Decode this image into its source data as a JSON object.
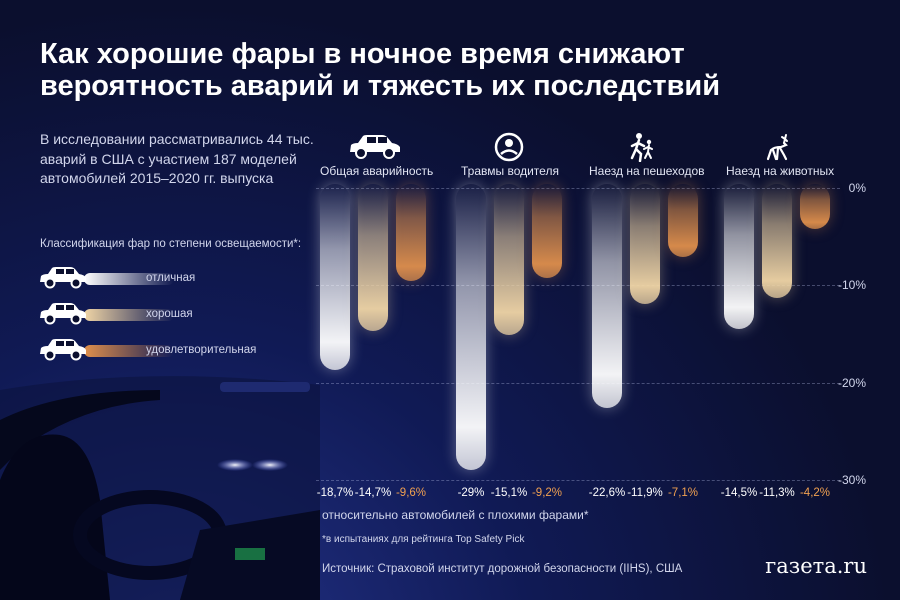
{
  "title": "Как хорошие фары в ночное время снижают вероятность аварий и тяжесть их последствий",
  "intro": "В исследовании рассматривались 44 тыс. аварий в США с участием 187 моделей автомобилей 2015–2020 гг. выпуска",
  "legend": {
    "title": "Классификация фар по степени освещаемости*:",
    "items": [
      {
        "label": "отличная",
        "color": "#ffffff"
      },
      {
        "label": "хорошая",
        "color": "#f1d6a6"
      },
      {
        "label": "удовлетворительная",
        "color": "#e0904c"
      }
    ]
  },
  "chart_data": {
    "type": "bar",
    "categories": [
      "Общая аварийность",
      "Травмы водителя",
      "Наезд на пешеходов",
      "Наезд на животных"
    ],
    "category_icons": [
      "car-icon",
      "driver-icon",
      "pedestrian-icon",
      "deer-icon"
    ],
    "series": [
      {
        "name": "отличная",
        "values": [
          -18.7,
          -29,
          -22.6,
          -14.5
        ],
        "labels": [
          "-18,7%",
          "-29%",
          "-22,6%",
          "-14,5%"
        ],
        "color": "#ffffff"
      },
      {
        "name": "хорошая",
        "values": [
          -14.7,
          -15.1,
          -11.9,
          -11.3
        ],
        "labels": [
          "-14,7%",
          "-15,1%",
          "-11,9%",
          "-11,3%"
        ],
        "color": "#f1d6a6"
      },
      {
        "name": "удовлетворительная",
        "values": [
          -9.6,
          -9.2,
          -7.1,
          -4.2
        ],
        "labels": [
          "-9,6%",
          "-9,2%",
          "-7,1%",
          "-4,2%"
        ],
        "color": "#e0904c"
      }
    ],
    "ylim": [
      -30,
      0
    ],
    "yticks": [
      0,
      -10,
      -20,
      -30
    ],
    "ytick_labels": [
      "0%",
      "-10%",
      "-20%",
      "-30%"
    ],
    "grid": true,
    "xlabel": "относительно автомобилей с плохими фарами*"
  },
  "footnote": "*в испытаниях для рейтинга Top Safety Pick",
  "source": "Источник: Страховой институт дорожной безопасности (IIHS), США",
  "brand": "газета.ru"
}
